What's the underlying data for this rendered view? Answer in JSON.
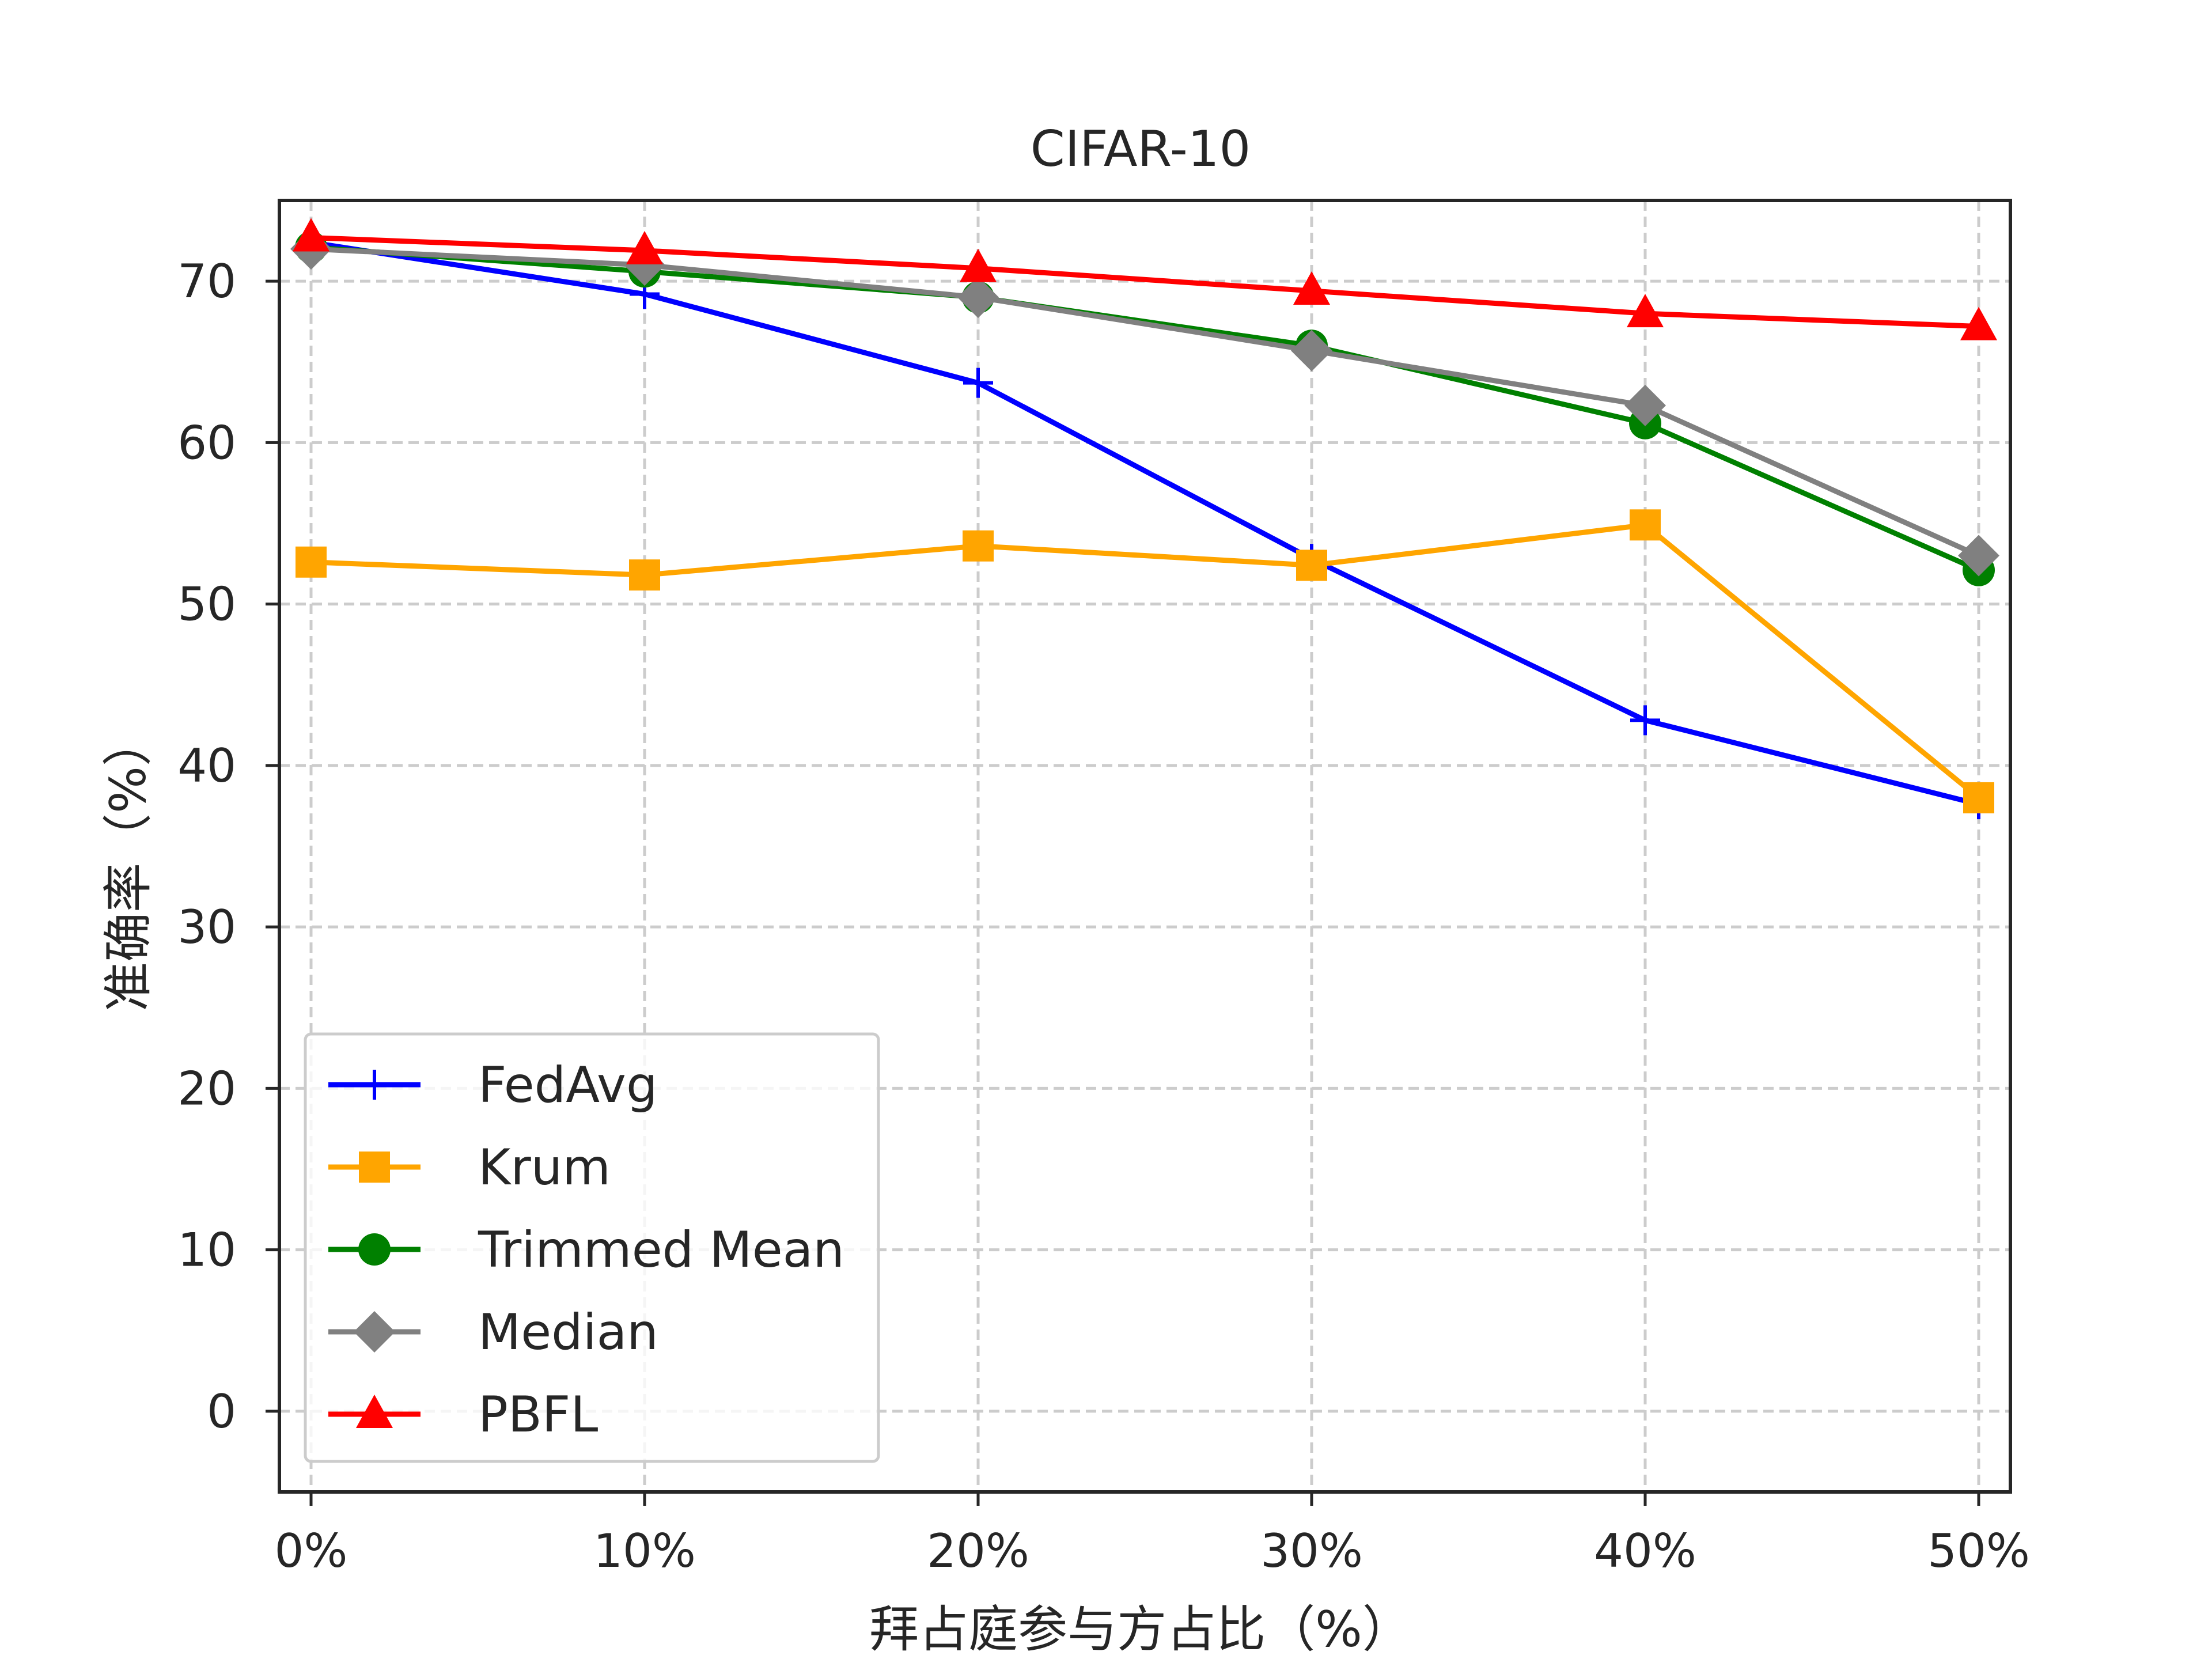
{
  "chart_data": {
    "type": "line",
    "title": "CIFAR-10",
    "xlabel": "拜占庭参与方占比（%）",
    "ylabel": "准确率（%）",
    "categories": [
      "0%",
      "10%",
      "20%",
      "30%",
      "40%",
      "50%"
    ],
    "ylim": [
      -5,
      75
    ],
    "yticks": [
      0,
      10,
      20,
      30,
      40,
      50,
      60,
      70
    ],
    "grid": true,
    "legend_position": "bottom-left",
    "series": [
      {
        "name": "FedAvg",
        "color": "#0000ff",
        "marker": "plus",
        "values": [
          72.4,
          69.2,
          63.7,
          52.8,
          42.8,
          37.6
        ]
      },
      {
        "name": "Krum",
        "color": "#ffa500",
        "marker": "square",
        "values": [
          52.6,
          51.8,
          53.6,
          52.4,
          54.9,
          38.0
        ]
      },
      {
        "name": "Trimmed Mean",
        "color": "#008000",
        "marker": "circle",
        "values": [
          72.1,
          70.6,
          69.0,
          66.0,
          61.2,
          52.1
        ]
      },
      {
        "name": "Median",
        "color": "#808080",
        "marker": "diamond",
        "values": [
          72.0,
          71.0,
          69.0,
          65.7,
          62.3,
          53.0
        ]
      },
      {
        "name": "PBFL",
        "color": "#ff0000",
        "marker": "triangle",
        "values": [
          72.7,
          71.9,
          70.8,
          69.4,
          68.0,
          67.2
        ]
      }
    ]
  }
}
